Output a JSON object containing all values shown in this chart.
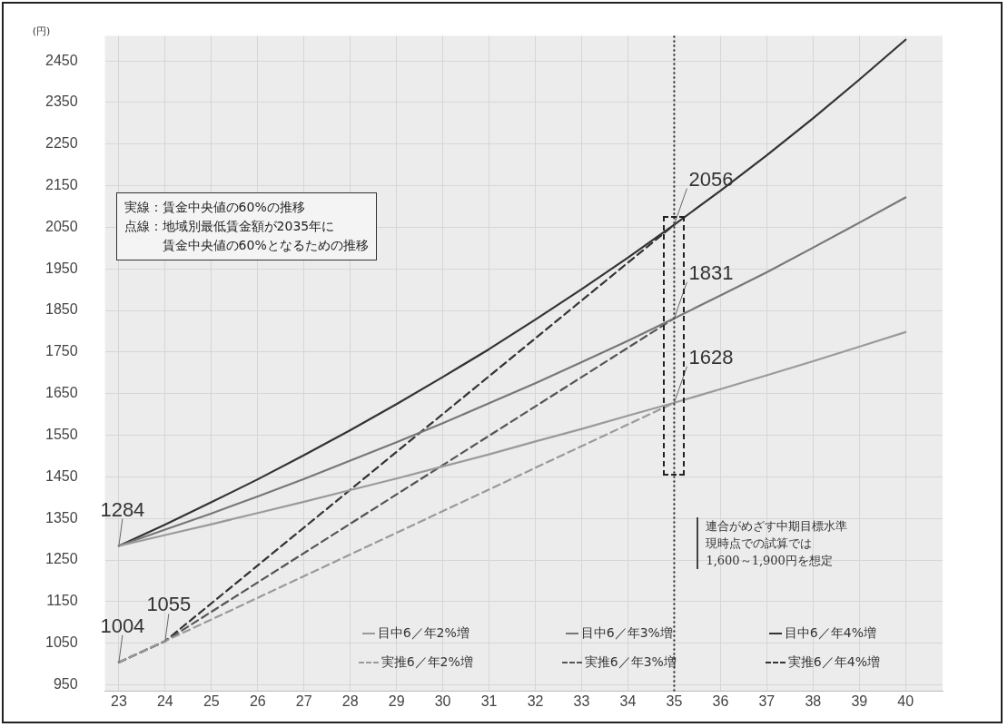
{
  "chart_data": {
    "type": "line",
    "ylabel": "(円)",
    "x": [
      23,
      24,
      25,
      26,
      27,
      28,
      29,
      30,
      31,
      32,
      33,
      34,
      35,
      36,
      37,
      38,
      39,
      40
    ],
    "xlim": [
      22.7,
      40.8
    ],
    "xticks": [
      23,
      24,
      25,
      26,
      27,
      28,
      29,
      30,
      31,
      32,
      33,
      34,
      35,
      36,
      37,
      38,
      39,
      40
    ],
    "ylim": [
      935,
      2510
    ],
    "yticks": [
      950,
      1050,
      1150,
      1250,
      1350,
      1450,
      1550,
      1650,
      1750,
      1850,
      1950,
      2050,
      2150,
      2250,
      2350,
      2450
    ],
    "grid": true,
    "legend": "bottom",
    "marker": "none",
    "line_style": "solid",
    "series": [
      {
        "name": "目中6／年2%増",
        "color": "#9a9a9a",
        "values": [
          1284,
          1310,
          1336,
          1363,
          1390,
          1418,
          1446,
          1475,
          1504,
          1535,
          1565,
          1597,
          1628,
          1661,
          1694,
          1728,
          1763,
          1798
        ]
      },
      {
        "name": "目中6／年3%増",
        "color": "#777777",
        "values": [
          1284,
          1323,
          1362,
          1403,
          1445,
          1489,
          1533,
          1579,
          1627,
          1675,
          1726,
          1777,
          1831,
          1886,
          1942,
          2001,
          2061,
          2122
        ]
      },
      {
        "name": "目中6／年4%増",
        "color": "#333333",
        "values": [
          1284,
          1335,
          1389,
          1444,
          1502,
          1562,
          1625,
          1690,
          1757,
          1828,
          1901,
          1977,
          2056,
          2138,
          2223,
          2312,
          2405,
          2501
        ]
      },
      {
        "name": "実推6／年2%増",
        "color": "#9a9a9a",
        "line_style": "dashed",
        "x": [
          23,
          24,
          35
        ],
        "values": [
          1004,
          1055,
          1628
        ]
      },
      {
        "name": "実推6／年3%増",
        "color": "#555555",
        "line_style": "dashed",
        "x": [
          23,
          24,
          35
        ],
        "values": [
          1004,
          1055,
          1831
        ]
      },
      {
        "name": "実推6／年4%増",
        "color": "#333333",
        "line_style": "dashed",
        "x": [
          23,
          24,
          35
        ],
        "values": [
          1004,
          1055,
          2056
        ]
      }
    ],
    "ref_lines": [
      {
        "axis": "x",
        "value": 35,
        "color": "#222222",
        "line_style": "dotted"
      }
    ],
    "annotations": [
      "実線：賃金中央値の60%の推移",
      "点線：地域別最低賃金額が2035年に",
      "賃金中央値の60%となるための推移",
      "連合がめざす中期目標水準",
      "現時点での試算では",
      "1,600～1,900円を想定",
      {
        "text": "1284",
        "x": 23,
        "y": 1284
      },
      {
        "text": "1004",
        "x": 23,
        "y": 1004
      },
      {
        "text": "1055",
        "x": 24,
        "y": 1055
      },
      {
        "text": "2056",
        "x": 35,
        "y": 2056
      },
      {
        "text": "1831",
        "x": 35,
        "y": 1831
      },
      {
        "text": "1628",
        "x": 35,
        "y": 1628
      }
    ]
  }
}
